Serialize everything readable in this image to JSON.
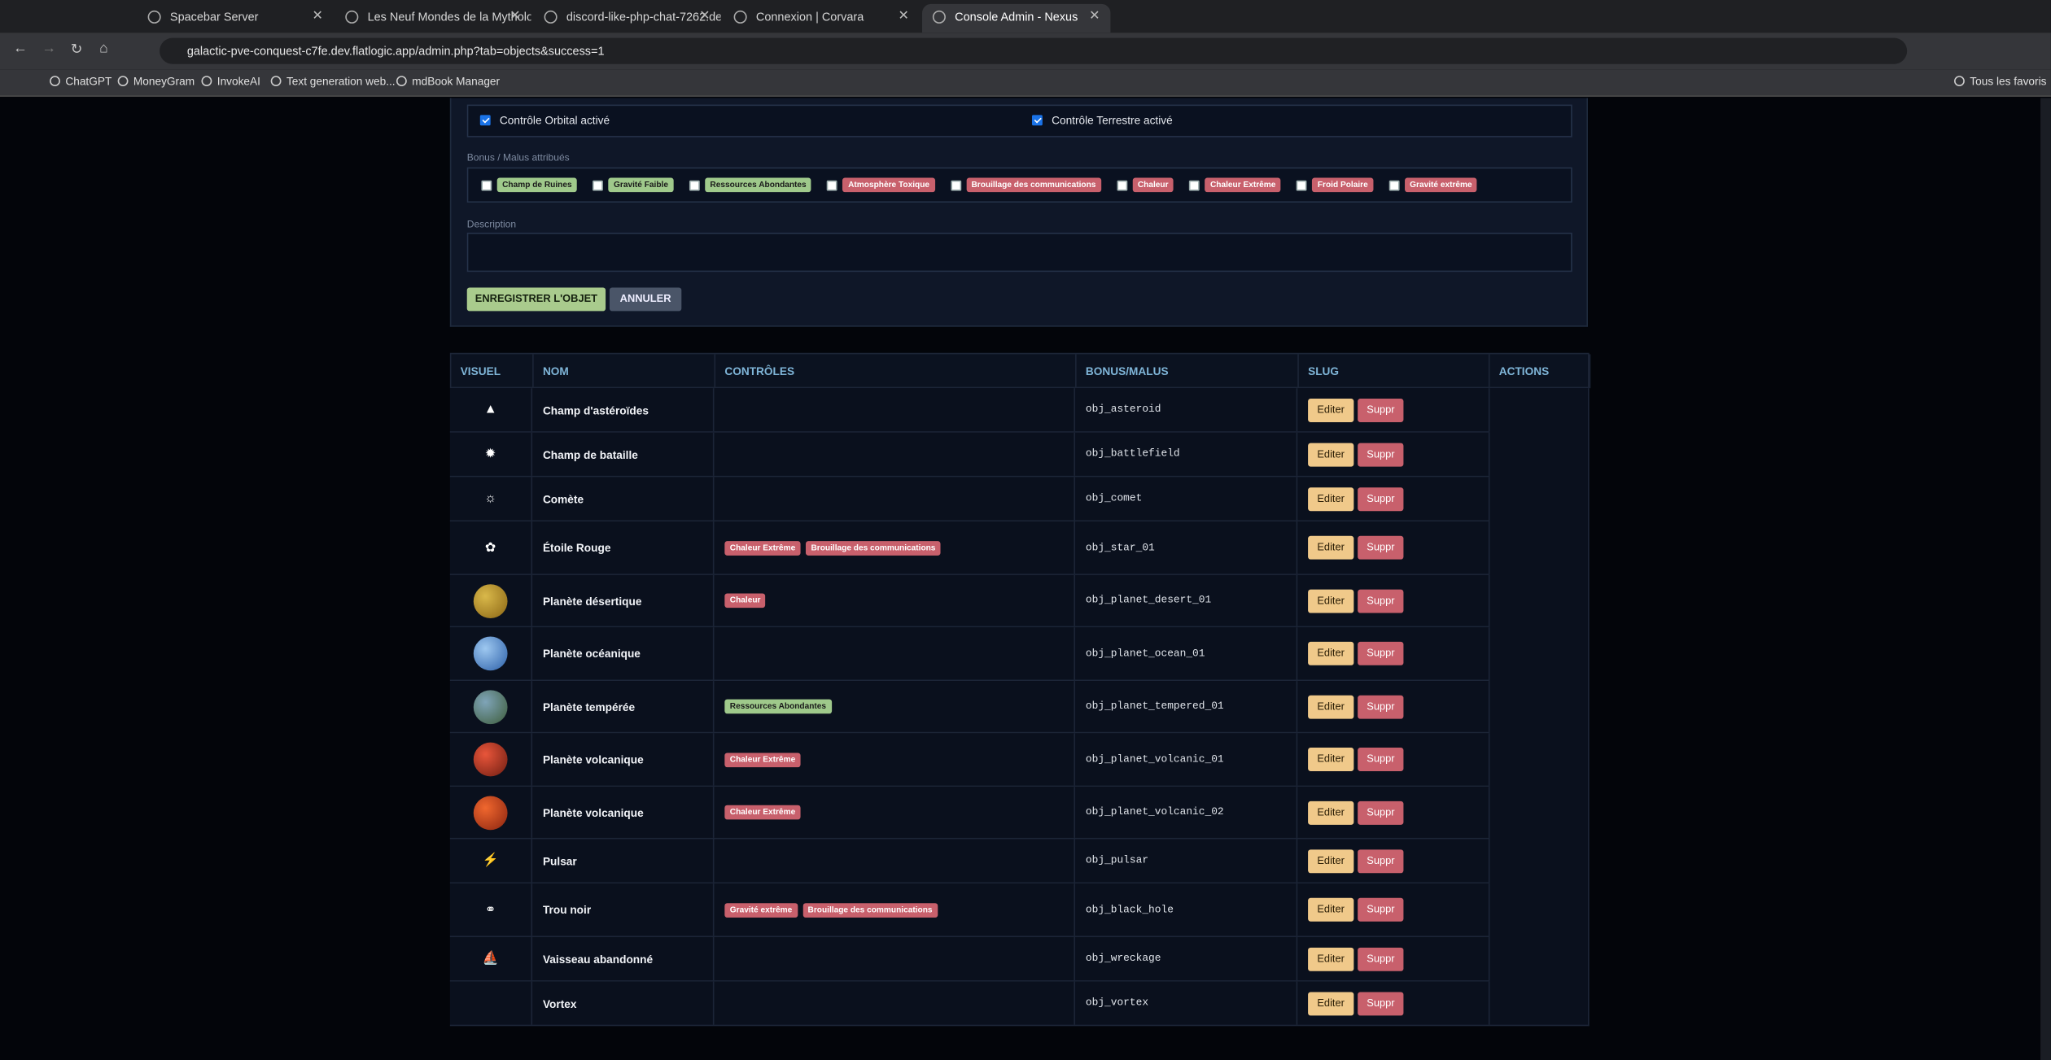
{
  "browser": {
    "tabs": [
      "Spacebar Server",
      "Les Neuf Mondes de la Mytholo",
      "discord-like-php-chat-7262.dev",
      "Connexion | Corvara",
      "Console Admin - Nexus"
    ],
    "url": "galactic-pve-conquest-c7fe.dev.flatlogic.app/admin.php?tab=objects&success=1",
    "bookmarks": [
      "ChatGPT",
      "MoneyGram",
      "InvokeAI",
      "Text generation web...",
      "mdBook Manager"
    ],
    "all_bookmarks": "Tous les favoris"
  },
  "form": {
    "controls": [
      "Contrôle Orbital activé",
      "Contrôle Terrestre activé"
    ],
    "bonus_label": "Bonus / Malus attribués",
    "bonuses": [
      {
        "label": "Champ de Ruines",
        "color": "#9fc98b"
      },
      {
        "label": "Gravité Faible",
        "color": "#9fc98b"
      },
      {
        "label": "Ressources Abondantes",
        "color": "#9fc98b"
      },
      {
        "label": "Atmosphère Toxique",
        "color": "#c8606c"
      },
      {
        "label": "Brouillage des communications",
        "color": "#c8606c"
      },
      {
        "label": "Chaleur",
        "color": "#c8606c"
      },
      {
        "label": "Chaleur Extrême",
        "color": "#c8606c"
      },
      {
        "label": "Froid Polaire",
        "color": "#c8606c"
      },
      {
        "label": "Gravité extrême",
        "color": "#c8606c"
      }
    ],
    "description_label": "Description",
    "save_button": "ENREGISTRER L'OBJET",
    "cancel_button": "ANNULER"
  },
  "table": {
    "headers": [
      "VISUEL",
      "NOM",
      "CONTRÔLES",
      "BONUS/MALUS",
      "SLUG",
      "ACTIONS"
    ],
    "edit_button": "Editer",
    "delete_button": "Suppr",
    "rows": [
      {
        "name": "Champ d'astéroïdes",
        "tags": [],
        "slug": "obj_asteroid"
      },
      {
        "name": "Champ de bataille",
        "tags": [],
        "slug": "obj_battlefield"
      },
      {
        "name": "Comète",
        "tags": [],
        "slug": "obj_comet"
      },
      {
        "name": "Étoile Rouge",
        "tags": [
          {
            "label": "Chaleur Extrême",
            "color": "#c8606c"
          },
          {
            "label": "Brouillage des communications",
            "color": "#c8606c"
          }
        ],
        "slug": "obj_star_01"
      },
      {
        "name": "Planète désertique",
        "tags": [
          {
            "label": "Chaleur",
            "color": "#c8606c"
          }
        ],
        "slug": "obj_planet_desert_01"
      },
      {
        "name": "Planète océanique",
        "tags": [],
        "slug": "obj_planet_ocean_01"
      },
      {
        "name": "Planète tempérée",
        "tags": [
          {
            "label": "Ressources Abondantes",
            "color": "#9fc98b"
          }
        ],
        "slug": "obj_planet_tempered_01"
      },
      {
        "name": "Planète volcanique",
        "tags": [
          {
            "label": "Chaleur Extrême",
            "color": "#c8606c"
          }
        ],
        "slug": "obj_planet_volcanic_01"
      },
      {
        "name": "Planète volcanique",
        "tags": [
          {
            "label": "Chaleur Extrême",
            "color": "#c8606c"
          }
        ],
        "slug": "obj_planet_volcanic_02"
      },
      {
        "name": "Pulsar",
        "tags": [],
        "slug": "obj_pulsar"
      },
      {
        "name": "Trou noir",
        "tags": [
          {
            "label": "Gravité extrême",
            "color": "#c8606c"
          },
          {
            "label": "Brouillage des communications",
            "color": "#c8606c"
          }
        ],
        "slug": "obj_black_hole"
      },
      {
        "name": "Vaisseau abandonné",
        "tags": [],
        "slug": "obj_wreckage"
      },
      {
        "name": "Vortex",
        "tags": [],
        "slug": "obj_vortex"
      }
    ]
  }
}
